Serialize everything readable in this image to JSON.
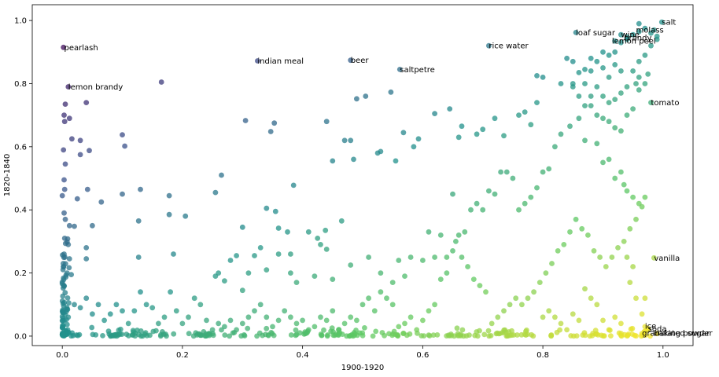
{
  "chart_data": {
    "type": "scatter",
    "xlabel": "1900-1920",
    "ylabel": "1820-1840",
    "xlim": [
      -0.05,
      1.05
    ],
    "ylim": [
      -0.03,
      1.05
    ],
    "xticks": [
      "0.0",
      "0.2",
      "0.4",
      "0.6",
      "0.8",
      "1.0"
    ],
    "yticks": [
      "0.0",
      "0.2",
      "0.4",
      "0.6",
      "0.8",
      "1.0"
    ],
    "grid": false,
    "colormap": [
      "#440154",
      "#3b528b",
      "#21918c",
      "#5ec962",
      "#fde725"
    ],
    "annotations": [
      {
        "text": "pearlash",
        "x": 0.003,
        "y": 0.915
      },
      {
        "text": "lemon brandy",
        "x": 0.01,
        "y": 0.79
      },
      {
        "text": "indian meal",
        "x": 0.325,
        "y": 0.872
      },
      {
        "text": "beer",
        "x": 0.48,
        "y": 0.874
      },
      {
        "text": "saltpetre",
        "x": 0.562,
        "y": 0.845
      },
      {
        "text": "rice water",
        "x": 0.71,
        "y": 0.92
      },
      {
        "text": "loaf sugar",
        "x": 0.855,
        "y": 0.962
      },
      {
        "text": "salt",
        "x": 0.998,
        "y": 0.995
      },
      {
        "text": "molass",
        "x": 0.955,
        "y": 0.97
      },
      {
        "text": "wine",
        "x": 0.93,
        "y": 0.955
      },
      {
        "text": "brandy",
        "x": 0.935,
        "y": 0.946
      },
      {
        "text": "lemon peel",
        "x": 0.915,
        "y": 0.935
      },
      {
        "text": "tomato",
        "x": 0.98,
        "y": 0.74
      },
      {
        "text": "vanilla",
        "x": 0.985,
        "y": 0.248
      },
      {
        "text": "ice",
        "x": 0.97,
        "y": 0.032
      },
      {
        "text": "soda",
        "x": 0.975,
        "y": 0.024
      },
      {
        "text": "granulated sugar",
        "x": 0.965,
        "y": 0.01
      },
      {
        "text": "baking powder",
        "x": 0.985,
        "y": 0.01
      }
    ],
    "points": [
      [
        0.002,
        0.915
      ],
      [
        0.01,
        0.79
      ],
      [
        0.325,
        0.872
      ],
      [
        0.48,
        0.874
      ],
      [
        0.562,
        0.845
      ],
      [
        0.71,
        0.92
      ],
      [
        0.855,
        0.962
      ],
      [
        0.998,
        0.995
      ],
      [
        0.96,
        0.965
      ],
      [
        0.93,
        0.955
      ],
      [
        0.94,
        0.948
      ],
      [
        0.92,
        0.935
      ],
      [
        0.98,
        0.74
      ],
      [
        0.985,
        0.248
      ],
      [
        0.97,
        0.03
      ],
      [
        0.975,
        0.024
      ],
      [
        0.965,
        0.008
      ],
      [
        0.99,
        0.008
      ],
      [
        0.165,
        0.805
      ],
      [
        0.04,
        0.74
      ],
      [
        0.005,
        0.735
      ],
      [
        0.003,
        0.7
      ],
      [
        0.012,
        0.69
      ],
      [
        0.004,
        0.68
      ],
      [
        0.03,
        0.62
      ],
      [
        0.045,
        0.588
      ],
      [
        0.03,
        0.575
      ],
      [
        0.1,
        0.638
      ],
      [
        0.104,
        0.602
      ],
      [
        0.016,
        0.625
      ],
      [
        0.002,
        0.59
      ],
      [
        0.005,
        0.545
      ],
      [
        0.003,
        0.495
      ],
      [
        0.004,
        0.465
      ],
      [
        0.0,
        0.445
      ],
      [
        0.025,
        0.435
      ],
      [
        0.042,
        0.465
      ],
      [
        0.065,
        0.425
      ],
      [
        0.1,
        0.45
      ],
      [
        0.13,
        0.465
      ],
      [
        0.178,
        0.445
      ],
      [
        0.003,
        0.39
      ],
      [
        0.005,
        0.37
      ],
      [
        0.012,
        0.35
      ],
      [
        0.02,
        0.348
      ],
      [
        0.05,
        0.35
      ],
      [
        0.004,
        0.31
      ],
      [
        0.008,
        0.298
      ],
      [
        0.01,
        0.29
      ],
      [
        0.003,
        0.26
      ],
      [
        0.012,
        0.245
      ],
      [
        0.04,
        0.28
      ],
      [
        0.002,
        0.22
      ],
      [
        0.008,
        0.2
      ],
      [
        0.015,
        0.195
      ],
      [
        0.04,
        0.245
      ],
      [
        0.127,
        0.365
      ],
      [
        0.178,
        0.385
      ],
      [
        0.205,
        0.38
      ],
      [
        0.185,
        0.26
      ],
      [
        0.127,
        0.25
      ],
      [
        0.305,
        0.683
      ],
      [
        0.353,
        0.675
      ],
      [
        0.347,
        0.648
      ],
      [
        0.44,
        0.68
      ],
      [
        0.49,
        0.752
      ],
      [
        0.505,
        0.76
      ],
      [
        0.547,
        0.773
      ],
      [
        0.265,
        0.51
      ],
      [
        0.255,
        0.455
      ],
      [
        0.45,
        0.555
      ],
      [
        0.47,
        0.62
      ],
      [
        0.48,
        0.62
      ],
      [
        0.485,
        0.56
      ],
      [
        0.53,
        0.585
      ],
      [
        0.525,
        0.58
      ],
      [
        0.555,
        0.555
      ],
      [
        0.568,
        0.645
      ],
      [
        0.585,
        0.6
      ],
      [
        0.593,
        0.625
      ],
      [
        0.385,
        0.478
      ],
      [
        0.34,
        0.405
      ],
      [
        0.355,
        0.395
      ],
      [
        0.36,
        0.342
      ],
      [
        0.375,
        0.33
      ],
      [
        0.41,
        0.33
      ],
      [
        0.425,
        0.31
      ],
      [
        0.438,
        0.335
      ],
      [
        0.465,
        0.365
      ],
      [
        0.43,
        0.29
      ],
      [
        0.44,
        0.275
      ],
      [
        0.38,
        0.26
      ],
      [
        0.33,
        0.28
      ],
      [
        0.32,
        0.255
      ],
      [
        0.36,
        0.26
      ],
      [
        0.3,
        0.345
      ],
      [
        0.29,
        0.255
      ],
      [
        0.28,
        0.24
      ],
      [
        0.26,
        0.2
      ],
      [
        0.255,
        0.19
      ],
      [
        0.27,
        0.175
      ],
      [
        0.3,
        0.145
      ],
      [
        0.31,
        0.2
      ],
      [
        0.34,
        0.21
      ],
      [
        0.38,
        0.2
      ],
      [
        0.39,
        0.17
      ],
      [
        0.42,
        0.19
      ],
      [
        0.45,
        0.18
      ],
      [
        0.48,
        0.225
      ],
      [
        0.51,
        0.25
      ],
      [
        0.53,
        0.2
      ],
      [
        0.55,
        0.17
      ],
      [
        0.56,
        0.24
      ],
      [
        0.58,
        0.25
      ],
      [
        0.57,
        0.19
      ],
      [
        0.6,
        0.24
      ],
      [
        0.61,
        0.33
      ],
      [
        0.62,
        0.25
      ],
      [
        0.63,
        0.32
      ],
      [
        0.64,
        0.25
      ],
      [
        0.65,
        0.45
      ],
      [
        0.66,
        0.63
      ],
      [
        0.62,
        0.705
      ],
      [
        0.645,
        0.72
      ],
      [
        0.665,
        0.665
      ],
      [
        0.69,
        0.64
      ],
      [
        0.7,
        0.655
      ],
      [
        0.72,
        0.69
      ],
      [
        0.735,
        0.635
      ],
      [
        0.76,
        0.7
      ],
      [
        0.77,
        0.71
      ],
      [
        0.78,
        0.67
      ],
      [
        0.79,
        0.74
      ],
      [
        0.79,
        0.825
      ],
      [
        0.8,
        0.82
      ],
      [
        0.83,
        0.8
      ],
      [
        0.84,
        0.88
      ],
      [
        0.85,
        0.87
      ],
      [
        0.85,
        0.8
      ],
      [
        0.87,
        0.8
      ],
      [
        0.88,
        0.84
      ],
      [
        0.89,
        0.79
      ],
      [
        0.9,
        0.85
      ],
      [
        0.91,
        0.82
      ],
      [
        0.92,
        0.86
      ],
      [
        0.93,
        0.84
      ],
      [
        0.95,
        0.84
      ],
      [
        0.96,
        0.87
      ],
      [
        0.97,
        0.89
      ],
      [
        0.98,
        0.92
      ],
      [
        0.99,
        0.94
      ],
      [
        0.99,
        0.95
      ],
      [
        0.985,
        0.97
      ],
      [
        0.98,
        0.96
      ],
      [
        0.97,
        0.975
      ],
      [
        0.96,
        0.99
      ],
      [
        0.95,
        0.955
      ],
      [
        0.94,
        0.94
      ],
      [
        0.93,
        0.93
      ],
      [
        0.92,
        0.9
      ],
      [
        0.91,
        0.89
      ],
      [
        0.9,
        0.9
      ],
      [
        0.89,
        0.87
      ],
      [
        0.88,
        0.88
      ],
      [
        0.87,
        0.845
      ],
      [
        0.86,
        0.835
      ],
      [
        0.85,
        0.79
      ],
      [
        0.86,
        0.76
      ],
      [
        0.87,
        0.73
      ],
      [
        0.88,
        0.76
      ],
      [
        0.89,
        0.7
      ],
      [
        0.9,
        0.69
      ],
      [
        0.91,
        0.68
      ],
      [
        0.92,
        0.66
      ],
      [
        0.93,
        0.65
      ],
      [
        0.94,
        0.7
      ],
      [
        0.95,
        0.72
      ],
      [
        0.96,
        0.78
      ],
      [
        0.97,
        0.8
      ],
      [
        0.975,
        0.83
      ],
      [
        0.96,
        0.82
      ],
      [
        0.955,
        0.8
      ],
      [
        0.94,
        0.79
      ],
      [
        0.93,
        0.77
      ],
      [
        0.92,
        0.75
      ],
      [
        0.91,
        0.74
      ],
      [
        0.9,
        0.76
      ],
      [
        0.88,
        0.73
      ],
      [
        0.86,
        0.69
      ],
      [
        0.845,
        0.665
      ],
      [
        0.83,
        0.64
      ],
      [
        0.82,
        0.6
      ],
      [
        0.81,
        0.53
      ],
      [
        0.8,
        0.52
      ],
      [
        0.79,
        0.47
      ],
      [
        0.78,
        0.44
      ],
      [
        0.77,
        0.42
      ],
      [
        0.76,
        0.4
      ],
      [
        0.75,
        0.5
      ],
      [
        0.74,
        0.52
      ],
      [
        0.73,
        0.52
      ],
      [
        0.72,
        0.45
      ],
      [
        0.71,
        0.46
      ],
      [
        0.7,
        0.4
      ],
      [
        0.69,
        0.42
      ],
      [
        0.68,
        0.4
      ],
      [
        0.67,
        0.33
      ],
      [
        0.66,
        0.32
      ],
      [
        0.65,
        0.27
      ],
      [
        0.64,
        0.2
      ],
      [
        0.63,
        0.18
      ],
      [
        0.62,
        0.1
      ],
      [
        0.61,
        0.08
      ],
      [
        0.6,
        0.05
      ],
      [
        0.59,
        0.02
      ],
      [
        0.58,
        0.06
      ],
      [
        0.57,
        0.04
      ],
      [
        0.56,
        0.03
      ],
      [
        0.55,
        0.1
      ],
      [
        0.54,
        0.12
      ],
      [
        0.53,
        0.14
      ],
      [
        0.52,
        0.08
      ],
      [
        0.51,
        0.12
      ],
      [
        0.5,
        0.1
      ],
      [
        0.49,
        0.05
      ],
      [
        0.48,
        0.06
      ],
      [
        0.47,
        0.04
      ],
      [
        0.46,
        0.02
      ],
      [
        0.45,
        0.08
      ],
      [
        0.44,
        0.05
      ],
      [
        0.43,
        0.06
      ],
      [
        0.42,
        0.03
      ],
      [
        0.41,
        0.02
      ],
      [
        0.4,
        0.05
      ],
      [
        0.39,
        0.04
      ],
      [
        0.38,
        0.06
      ],
      [
        0.37,
        0.08
      ],
      [
        0.36,
        0.05
      ],
      [
        0.35,
        0.03
      ],
      [
        0.34,
        0.06
      ],
      [
        0.33,
        0.1
      ],
      [
        0.32,
        0.08
      ],
      [
        0.31,
        0.06
      ],
      [
        0.3,
        0.04
      ],
      [
        0.29,
        0.02
      ],
      [
        0.28,
        0.05
      ],
      [
        0.27,
        0.03
      ],
      [
        0.26,
        0.04
      ],
      [
        0.25,
        0.02
      ],
      [
        0.24,
        0.05
      ],
      [
        0.23,
        0.1
      ],
      [
        0.22,
        0.12
      ],
      [
        0.21,
        0.06
      ],
      [
        0.2,
        0.04
      ],
      [
        0.19,
        0.08
      ],
      [
        0.18,
        0.14
      ],
      [
        0.17,
        0.06
      ],
      [
        0.16,
        0.04
      ],
      [
        0.15,
        0.09
      ],
      [
        0.14,
        0.1
      ],
      [
        0.13,
        0.14
      ],
      [
        0.12,
        0.08
      ],
      [
        0.11,
        0.04
      ],
      [
        0.1,
        0.08
      ],
      [
        0.09,
        0.1
      ],
      [
        0.08,
        0.07
      ],
      [
        0.07,
        0.05
      ],
      [
        0.06,
        0.1
      ],
      [
        0.05,
        0.07
      ],
      [
        0.04,
        0.12
      ],
      [
        0.03,
        0.09
      ],
      [
        0.02,
        0.1
      ],
      [
        0.01,
        0.06
      ],
      [
        0.87,
        0.62
      ],
      [
        0.89,
        0.61
      ],
      [
        0.9,
        0.55
      ],
      [
        0.91,
        0.56
      ],
      [
        0.92,
        0.5
      ],
      [
        0.93,
        0.52
      ],
      [
        0.935,
        0.48
      ],
      [
        0.94,
        0.46
      ],
      [
        0.95,
        0.44
      ],
      [
        0.96,
        0.42
      ],
      [
        0.97,
        0.44
      ],
      [
        0.965,
        0.41
      ],
      [
        0.955,
        0.37
      ],
      [
        0.945,
        0.34
      ],
      [
        0.935,
        0.3
      ],
      [
        0.925,
        0.28
      ],
      [
        0.915,
        0.25
      ],
      [
        0.905,
        0.22
      ],
      [
        0.895,
        0.25
      ],
      [
        0.885,
        0.27
      ],
      [
        0.875,
        0.32
      ],
      [
        0.865,
        0.34
      ],
      [
        0.855,
        0.37
      ],
      [
        0.845,
        0.33
      ],
      [
        0.835,
        0.29
      ],
      [
        0.825,
        0.27
      ],
      [
        0.815,
        0.23
      ],
      [
        0.805,
        0.2
      ],
      [
        0.795,
        0.17
      ],
      [
        0.785,
        0.14
      ],
      [
        0.775,
        0.12
      ],
      [
        0.765,
        0.1
      ],
      [
        0.755,
        0.12
      ],
      [
        0.745,
        0.1
      ],
      [
        0.735,
        0.08
      ],
      [
        0.725,
        0.06
      ],
      [
        0.715,
        0.04
      ],
      [
        0.705,
        0.14
      ],
      [
        0.695,
        0.16
      ],
      [
        0.685,
        0.18
      ],
      [
        0.675,
        0.22
      ],
      [
        0.665,
        0.25
      ],
      [
        0.655,
        0.3
      ],
      [
        0.945,
        0.17
      ],
      [
        0.955,
        0.12
      ],
      [
        0.965,
        0.07
      ],
      [
        0.97,
        0.12
      ],
      [
        0.95,
        0.22
      ],
      [
        0.94,
        0.25
      ],
      [
        0.93,
        0.04
      ],
      [
        0.92,
        0.06
      ],
      [
        0.91,
        0.02
      ],
      [
        0.9,
        0.05
      ],
      [
        0.89,
        0.1
      ],
      [
        0.88,
        0.12
      ],
      [
        0.87,
        0.15
      ],
      [
        0.86,
        0.05
      ],
      [
        0.85,
        0.07
      ],
      [
        0.84,
        0.02
      ],
      [
        0.83,
        0.04
      ],
      [
        0.82,
        0.06
      ],
      [
        0.81,
        0.08
      ],
      [
        0.8,
        0.06
      ]
    ]
  }
}
